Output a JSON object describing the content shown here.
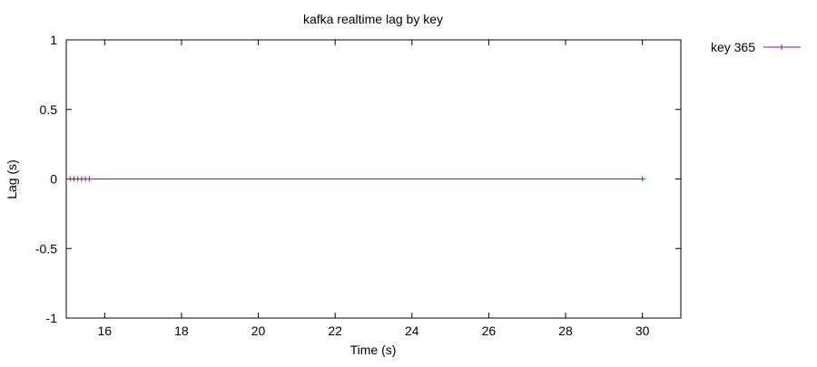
{
  "chart_data": {
    "type": "line",
    "title": "kafka realtime lag by key",
    "xlabel": "Time (s)",
    "ylabel": "Lag (s)",
    "xlim": [
      15,
      31
    ],
    "ylim": [
      -1,
      1
    ],
    "xticks": [
      16,
      18,
      20,
      22,
      24,
      26,
      28,
      30
    ],
    "yticks": [
      -1,
      -0.5,
      0,
      0.5,
      1
    ],
    "ytick_labels": [
      "-1",
      "-0.5",
      "0",
      "0.5",
      "1"
    ],
    "grid": false,
    "legend_position": "top-right, outside plot",
    "series": [
      {
        "name": "key 365",
        "color": "#9400d3",
        "marker": "plus",
        "x": [
          15.1,
          15.2,
          15.3,
          15.4,
          15.5,
          15.6,
          30.0
        ],
        "y": [
          0,
          0,
          0,
          0,
          0,
          0,
          0
        ]
      }
    ]
  }
}
